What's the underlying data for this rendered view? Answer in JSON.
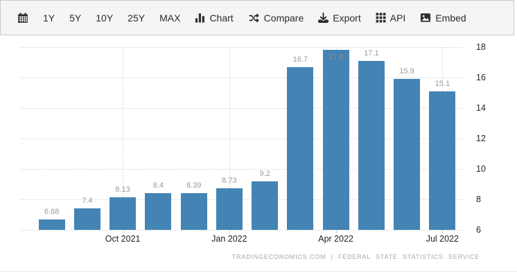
{
  "toolbar": {
    "items": [
      {
        "label": "",
        "icon": "calendar-icon"
      },
      {
        "label": "1Y"
      },
      {
        "label": "5Y"
      },
      {
        "label": "10Y"
      },
      {
        "label": "25Y"
      },
      {
        "label": "MAX"
      },
      {
        "label": "Chart",
        "icon": "bar-chart-icon"
      },
      {
        "label": "Compare",
        "icon": "shuffle-icon"
      },
      {
        "label": "Export",
        "icon": "download-icon"
      },
      {
        "label": "API",
        "icon": "grid-icon"
      },
      {
        "label": "Embed",
        "icon": "image-icon"
      }
    ]
  },
  "chart_data": {
    "type": "bar",
    "title": "",
    "values": [
      6.68,
      7.4,
      8.13,
      8.4,
      8.39,
      8.73,
      9.2,
      16.7,
      17.8,
      17.1,
      15.9,
      15.1
    ],
    "bar_labels": [
      "6.68",
      "7.4",
      "8.13",
      "8.4",
      "8.39",
      "8.73",
      "9.2",
      "16.7",
      "17.8",
      "17.1",
      "15.9",
      "15.1"
    ],
    "x_ticks": [
      {
        "label": "Oct 2021",
        "bar_index": 2
      },
      {
        "label": "Jan 2022",
        "bar_index": 5
      },
      {
        "label": "Apr 2022",
        "bar_index": 8
      },
      {
        "label": "Jul 2022",
        "bar_index": 11
      }
    ],
    "y_ticks": [
      6,
      8,
      10,
      12,
      14,
      16,
      18
    ],
    "ylim": [
      6,
      18
    ],
    "grid": true,
    "legend": "none",
    "bar_color": "#4384b5",
    "bar_label_color": "#999999",
    "inside_label_color": "#8c8c8c"
  },
  "footer": {
    "attribution": "TRADINGECONOMICS.COM | FEDERAL STATE STATISTICS SERVICE"
  }
}
